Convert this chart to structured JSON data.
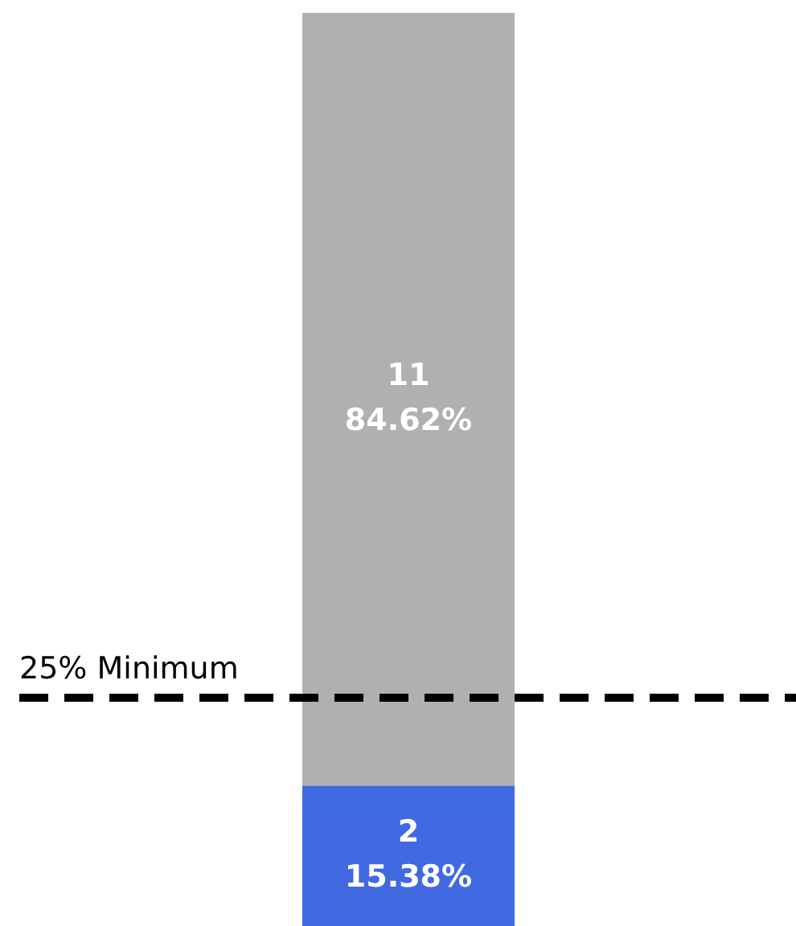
{
  "chart_data": {
    "type": "bar",
    "stacked": true,
    "categories": [
      null
    ],
    "ylim": [
      0,
      100
    ],
    "series": [
      {
        "color": "#4169e1",
        "values": [
          15.38
        ],
        "value_labels": [
          "2\n15.38%"
        ]
      },
      {
        "color": "#b0b0b0",
        "values": [
          84.62
        ],
        "value_labels": [
          "11\n84.62%"
        ]
      }
    ],
    "ref_lines": [
      {
        "axis": "y",
        "value": 25,
        "label": "25% Minimum",
        "color": "#000000",
        "line_style": "dashed"
      }
    ]
  }
}
